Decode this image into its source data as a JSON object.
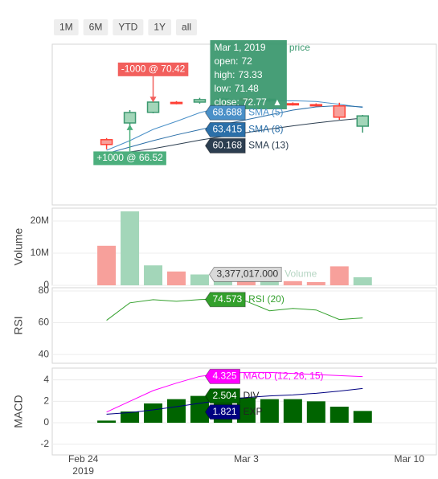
{
  "range_selector": [
    "1M",
    "6M",
    "YTD",
    "1Y",
    "all"
  ],
  "hover": {
    "x": "2019-03-01"
  },
  "chart_data": [
    {
      "type": "candlestick",
      "name": "price",
      "x": [
        "2019-02-25",
        "2019-02-26",
        "2019-02-27",
        "2019-02-28",
        "2019-03-01",
        "2019-03-02",
        "2019-03-03",
        "2019-03-04",
        "2019-03-05",
        "2019-03-06",
        "2019-03-07",
        "2019-03-08"
      ],
      "open": [
        60.3,
        65.5,
        68.8,
        71.9,
        72,
        72.8,
        73.1,
        72.6,
        71.5,
        71.2,
        70.8,
        64.5
      ],
      "high": [
        60.8,
        69.5,
        72.3,
        72.3,
        73.33,
        73.5,
        73.6,
        73.2,
        71.9,
        71.6,
        71.8,
        68
      ],
      "low": [
        57.3,
        64.2,
        68.5,
        71.3,
        71.48,
        72.2,
        72.4,
        71.9,
        70.9,
        70.7,
        66.5,
        62.5
      ],
      "close": [
        58.8,
        68.75,
        72,
        71.6,
        72.77,
        73.1,
        72.6,
        72.9,
        71.2,
        71,
        67.3,
        67.7
      ],
      "increasing_color": "#3d9970",
      "increasing_fill": "#a3d6b9",
      "decreasing_color": "#ff4136",
      "decreasing_fill": "#f7a09b",
      "ylim": [
        40,
        90
      ],
      "series": [
        {
          "name": "SMA (5)",
          "color": "#4a90c8",
          "values": [
            57,
            60,
            63.5,
            66,
            68.688,
            70.5,
            71.8,
            72.3,
            72.4,
            72.2,
            71.3,
            70.3
          ]
        },
        {
          "name": "SMA (8)",
          "color": "#2b6fa8",
          "values": [
            56,
            58,
            60,
            61.8,
            63.415,
            65,
            66.5,
            68,
            69.5,
            70.5,
            70.9,
            70.5
          ]
        },
        {
          "name": "SMA (13)",
          "color": "#2c3e50",
          "values": [
            55.5,
            56.5,
            57.5,
            58.8,
            60.168,
            61.3,
            62.5,
            63.6,
            64.6,
            65.5,
            66.3,
            67
          ]
        }
      ],
      "annotations": [
        {
          "text": "-1000 @ 70.42",
          "x": "2019-02-27",
          "y": 70.42,
          "position": "above",
          "color": "#f25f5c"
        },
        {
          "text": "+1000 @ 66.52",
          "x": "2019-02-26",
          "y": 66.52,
          "position": "below",
          "color": "#4caf7d"
        }
      ],
      "tooltip": {
        "title": "Mar 1, 2019",
        "rows": [
          "open:",
          "high:",
          "low:",
          "close:"
        ],
        "symbol": "▲",
        "color": "#3d9970"
      }
    },
    {
      "type": "bar",
      "name": "Volume",
      "y_label": "Volume",
      "x": [
        "2019-02-25",
        "2019-02-26",
        "2019-02-27",
        "2019-02-28",
        "2019-03-01",
        "2019-03-02",
        "2019-03-03",
        "2019-03-04",
        "2019-03-05",
        "2019-03-06",
        "2019-03-07",
        "2019-03-08"
      ],
      "values": [
        12300000,
        23000000,
        6200000,
        4300000,
        3377017,
        2600000,
        2100000,
        1800000,
        1300000,
        1000000,
        5900000,
        2500000
      ],
      "value_labels": [
        null,
        null,
        null,
        null,
        "3,377,017.000",
        null,
        null,
        null,
        null,
        null,
        null,
        null
      ],
      "increasing_color": "#a3d6b9",
      "decreasing_color": "#f7a09b",
      "ylim": [
        0,
        24000000
      ],
      "yticks": [
        0,
        {
          "value": 10000000,
          "label": "10M"
        },
        {
          "value": 20000000,
          "label": "20M"
        }
      ]
    },
    {
      "type": "line",
      "y_label": "RSI",
      "x": [
        "2019-02-25",
        "2019-02-26",
        "2019-02-27",
        "2019-02-28",
        "2019-03-01",
        "2019-03-02",
        "2019-03-03",
        "2019-03-04",
        "2019-03-05",
        "2019-03-06",
        "2019-03-07",
        "2019-03-08"
      ],
      "series": [
        {
          "name": "RSI (20)",
          "color": "#33a02c",
          "values": [
            61.5,
            72.5,
            74.5,
            73.5,
            74.573,
            75,
            73.5,
            67.5,
            69,
            68,
            62,
            63
          ]
        }
      ],
      "ylim": [
        34.5,
        82
      ],
      "yticks": [
        40,
        60,
        80
      ]
    },
    {
      "type": "combo",
      "y_label": "MACD",
      "x": [
        "2019-02-25",
        "2019-02-26",
        "2019-02-27",
        "2019-02-28",
        "2019-03-01",
        "2019-03-02",
        "2019-03-03",
        "2019-03-04",
        "2019-03-05",
        "2019-03-06",
        "2019-03-07",
        "2019-03-08"
      ],
      "series": [
        {
          "name": "MACD (12, 26, 15)",
          "type": "line",
          "color": "#ff00ff",
          "values": [
            1.0,
            2.0,
            3.0,
            3.7,
            4.325,
            4.6,
            4.7,
            4.7,
            4.6,
            4.5,
            4.4,
            4.3
          ]
        },
        {
          "name": "DIV",
          "type": "bar",
          "color": "#006400",
          "values": [
            0.2,
            1.05,
            1.8,
            2.2,
            2.504,
            2.5,
            2.35,
            2.2,
            2.2,
            2.0,
            1.5,
            1.1
          ]
        },
        {
          "name": "EXP",
          "type": "line",
          "color": "#000080",
          "values": [
            0.8,
            0.95,
            1.2,
            1.5,
            1.821,
            2.1,
            2.35,
            2.5,
            2.6,
            2.75,
            2.95,
            3.2
          ]
        }
      ],
      "ylim": [
        -3,
        5.1
      ],
      "yticks": [
        -2,
        0,
        2,
        4
      ],
      "xlim": [
        "2019-02-22T16:00",
        "2019-03-11T04:00"
      ],
      "xticks": [
        {
          "value": "2019-02-24",
          "label": "Feb 24",
          "year": "2019"
        },
        {
          "value": "2019-03-03",
          "label": "Mar 3"
        },
        {
          "value": "2019-03-10",
          "label": "Mar 10"
        }
      ]
    }
  ]
}
